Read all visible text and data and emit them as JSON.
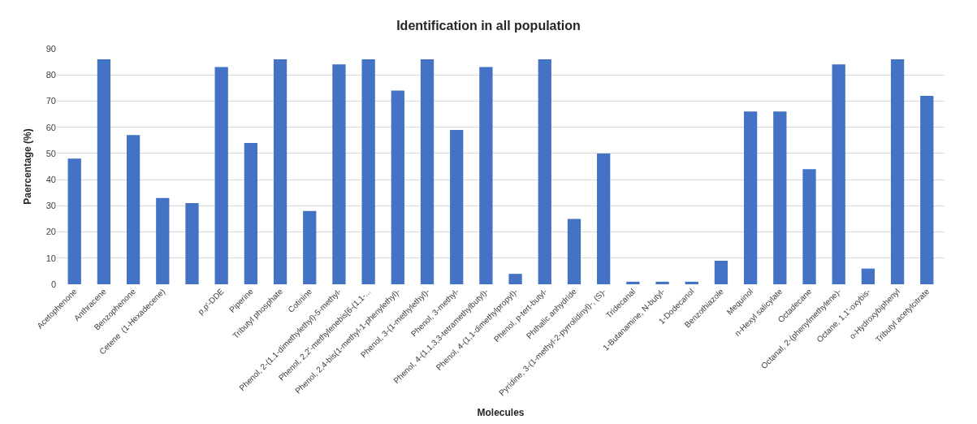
{
  "chart_data": {
    "type": "bar",
    "title": "Identification in all population",
    "xlabel": "Molecules",
    "ylabel": "Paercentage (%)",
    "categories": [
      "Acetophenone",
      "Anthracene",
      "Benzophenone",
      "Cetene  (1-Hexadecene)",
      null,
      "p,p'-DDE",
      "Piperine",
      "Tributyl phosphate",
      "Cotinine",
      "Phenol, 2-(1,1-dimethylethyl)-5-methyl-",
      "Phenol, 2,2'-methylenebis[6-(1,1-...",
      "Phenol, 2,4-bis(1-methyl-1-phenylethyl)-",
      "Phenol, 3-(1-methylethyl)-",
      "Phenol, 3-methyl-",
      "Phenol, 4-(1,1,3,3-tetramethylbutyl)-",
      "Phenol, 4-(1,1-dimethylpropyl)-",
      "Phenol, p-tert-butyl-",
      "Phthalic anhydride",
      "Pyridine, 3-(1-methyl-2-pyrrolidinyl)-, (S)-",
      "Tridecanal",
      "1-Butanamine, N-butyl-",
      "1-Dodecanol",
      "Benzothiazole",
      "Mequinol",
      "n-Hexyl salicylate",
      "Octadecane",
      "Octanal, 2-(phenylmethylene)-",
      "Octane, 1,1'-oxybis-",
      "o-Hydroxybiphenyl",
      "Tributyl acetylcitrate"
    ],
    "values": [
      48,
      86,
      57,
      33,
      31,
      83,
      54,
      86,
      28,
      84,
      86,
      74,
      86,
      59,
      83,
      4,
      86,
      25,
      50,
      1,
      1,
      1,
      9,
      66,
      66,
      44,
      84,
      6,
      86,
      72
    ],
    "color": "#4472c4",
    "ylim": [
      0,
      90
    ],
    "yticks": [
      0,
      10,
      20,
      30,
      40,
      50,
      60,
      70,
      80,
      90
    ],
    "grid": "y"
  }
}
